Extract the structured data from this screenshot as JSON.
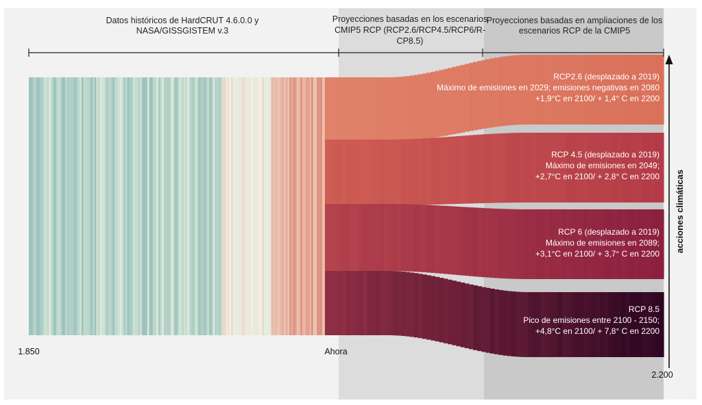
{
  "chart_data": {
    "type": "area",
    "sections": [
      {
        "lines": [
          "Datos históricos de HardCRUT 4.6.0.0 y",
          "NASA/GISSGISTEM v.3"
        ]
      },
      {
        "lines": [
          "Proyecciones basadas en los escenarios",
          "CMIP5 RCP (RCP2.6/RCP4.5/RCP6/R-",
          "CP8.5)"
        ]
      },
      {
        "lines": [
          "Proyecciones basadas en ampliaciones de los",
          "escenarios RCP de la CMIP5"
        ]
      }
    ],
    "x_tick_labels": {
      "start": "1.850",
      "now": "Ahora",
      "end": "2.200"
    },
    "x_range": [
      1850,
      2200
    ],
    "now_year": 2019,
    "section_boundary_year": 2100,
    "right_axis_label": "acciones climáticas",
    "series": [
      {
        "name": "RCP2.6",
        "label_lines": [
          "RCP2.6 (desplazado a 2019)",
          "Máximo de emisiones en 2029; emisiones negativas en 2080",
          "+1,9°C en 2100/ + 1,4° C en 2200"
        ],
        "warming_2100_c": 1.9,
        "warming_2200_c": 1.4,
        "color_start": "#e0826b",
        "color_end": "#d9705a"
      },
      {
        "name": "RCP 4.5",
        "label_lines": [
          "RCP 4.5 (desplazado a 2019)",
          "Máximo de emisiones en 2049;",
          "+2,7°C en 2100/ + 2,8° C en 2200"
        ],
        "warming_2100_c": 2.7,
        "warming_2200_c": 2.8,
        "color_start": "#cf5e55",
        "color_end": "#b23a47"
      },
      {
        "name": "RCP 6",
        "label_lines": [
          "RCP 6 (desplazado a 2019)",
          "Máximo de emisiones en 2089;",
          "+3,1°C en 2100/ + 3,7° C en 2200"
        ],
        "warming_2100_c": 3.1,
        "warming_2200_c": 3.7,
        "color_start": "#b4434d",
        "color_end": "#8a1f3e"
      },
      {
        "name": "RCP 8.5",
        "label_lines": [
          "RCP 8.5",
          "Pico de emisiones entre  2100 - 2150;",
          "+4,8°C en 2100/ + 7,8° C en 2200"
        ],
        "warming_2100_c": 4.8,
        "warming_2200_c": 7.8,
        "color_start": "#8f2f45",
        "color_end": "#2d0622"
      }
    ],
    "colors": {
      "background": "#f2f2f2",
      "projection_band": "#dcdcdc",
      "extension_band": "#c9c9c9",
      "historic_stripe_palette": [
        "#a6c9c4",
        "#c4ddd0",
        "#d6e7d8",
        "#e4efdf",
        "#9fc2c0",
        "#f0dcc8",
        "#e9b7a2"
      ]
    },
    "grid": false,
    "legend": "none"
  }
}
